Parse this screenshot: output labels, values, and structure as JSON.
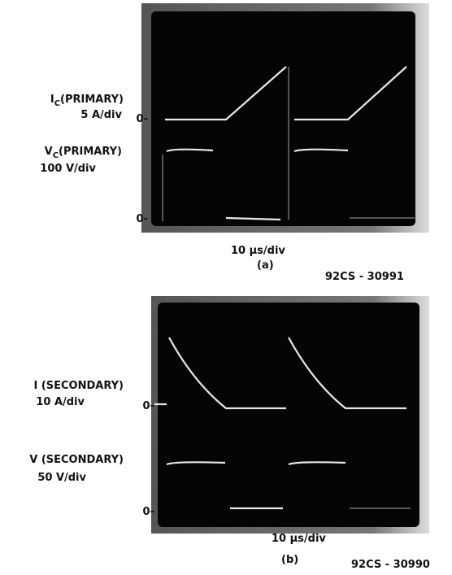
{
  "figure_a": {
    "trace1_label": {
      "prefix": "I",
      "sub": "C",
      "suffix": "(PRIMARY)"
    },
    "trace1_scale": "5 A/div",
    "trace1_zero": "0-",
    "trace2_label": {
      "prefix": "V",
      "sub": "C",
      "suffix": "(PRIMARY)"
    },
    "trace2_scale": "100 V/div",
    "trace2_zero": "0-",
    "time_scale": "10 µs/div",
    "caption": "(a)",
    "code": "92CS - 30991"
  },
  "figure_b": {
    "trace1_label": "I (SECONDARY)",
    "trace1_scale": "10 A/div",
    "trace1_zero": "0-",
    "trace2_label": "V (SECONDARY)",
    "trace2_scale": "50 V/div",
    "trace2_zero": "0-",
    "time_scale": "10 µs/div",
    "caption": "(b)",
    "code": "92CS - 30990"
  }
}
